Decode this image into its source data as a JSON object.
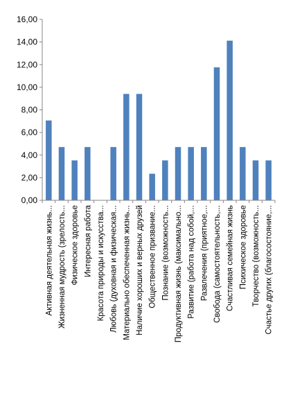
{
  "chart_data": {
    "type": "bar",
    "title": "",
    "xlabel": "",
    "ylabel": "",
    "ylim": [
      0,
      16
    ],
    "yticks": [
      "0,00",
      "2,00",
      "4,00",
      "6,00",
      "8,00",
      "10,00",
      "12,00",
      "14,00",
      "16,00"
    ],
    "ytick_values": [
      0,
      2,
      4,
      6,
      8,
      10,
      12,
      14,
      16
    ],
    "grid": false,
    "legend": "none",
    "bar_color": "#4f81bd",
    "categories": [
      "Активная деятельная жизнь...",
      "Жизненная мудрость (зрелость...",
      "Физическое здоровье",
      "Интересная работа",
      "Красота природы и искусства...",
      "Любовь (духовная и физическая...",
      "Материально обеспеченная жизнь...",
      "Наличие хороших и верных друзей",
      "Общественное призвание...",
      "Познание (возможность...",
      "Продуктивная жизнь (максимально...",
      "Развитие (работа над собой,...",
      "Развлечения (приятное,...",
      "Свобода (самостоятельность,...",
      "Счастливая семейная жизнь",
      "Психическое здоровье",
      "Творчество (возможность...",
      "Счастье других (благосостояние,..."
    ],
    "values": [
      7.06,
      4.71,
      3.53,
      4.71,
      0,
      4.71,
      9.41,
      9.41,
      2.35,
      3.53,
      4.71,
      4.71,
      4.71,
      11.76,
      14.12,
      4.71,
      3.53,
      3.53
    ]
  }
}
